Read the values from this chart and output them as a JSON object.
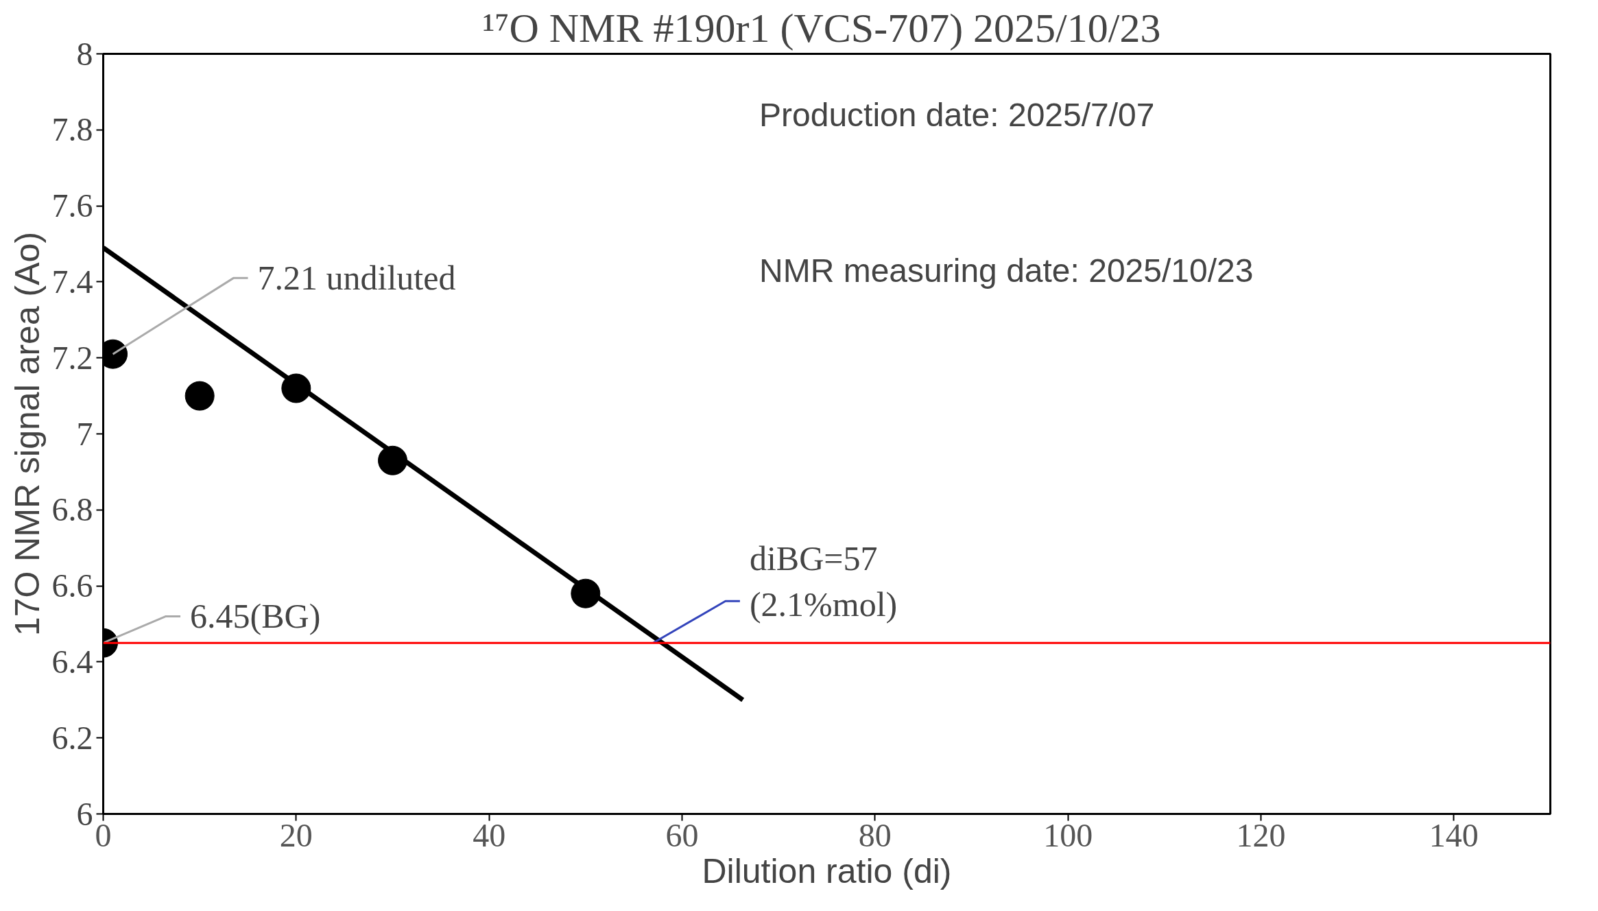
{
  "chart_data": {
    "type": "scatter",
    "title": "¹⁷O NMR  #190r1 (VCS-707) 2025/10/23",
    "xlabel": "Dilution ratio (di)",
    "ylabel": "17O NMR signal area (Ao)",
    "series": [
      {
        "color": "#000000",
        "marker": "circle",
        "x": [
          0,
          1,
          10,
          20,
          30,
          50
        ],
        "values": [
          6.45,
          7.21,
          7.1,
          7.12,
          6.93,
          6.58
        ]
      },
      {
        "type": "line",
        "color": "#000000",
        "x": [
          0,
          66.3
        ],
        "values": [
          7.49,
          6.3
        ]
      }
    ],
    "grid": false,
    "xlim": [
      0,
      150
    ],
    "xticks": [
      0,
      20,
      40,
      60,
      80,
      100,
      120,
      140
    ],
    "ylim": [
      6,
      8
    ],
    "yticks": [
      6,
      6.2,
      6.4,
      6.6,
      6.8,
      7,
      7.2,
      7.4,
      7.6,
      7.8,
      8
    ],
    "ref_lines": [
      {
        "axis": "y",
        "value": 6.45,
        "color": "#ff0000"
      }
    ],
    "annotations": [
      {
        "text": "7.21 undiluted",
        "x": 1,
        "y": 7.21
      },
      {
        "text": "6.45(BG)",
        "x": 0,
        "y": 6.45
      },
      {
        "text": "diBG=57\n(2.1%mol)",
        "x": 57,
        "y": 6.45
      },
      "Production date: 2025/7/07",
      "NMR measuring date: 2025/10/23"
    ]
  }
}
